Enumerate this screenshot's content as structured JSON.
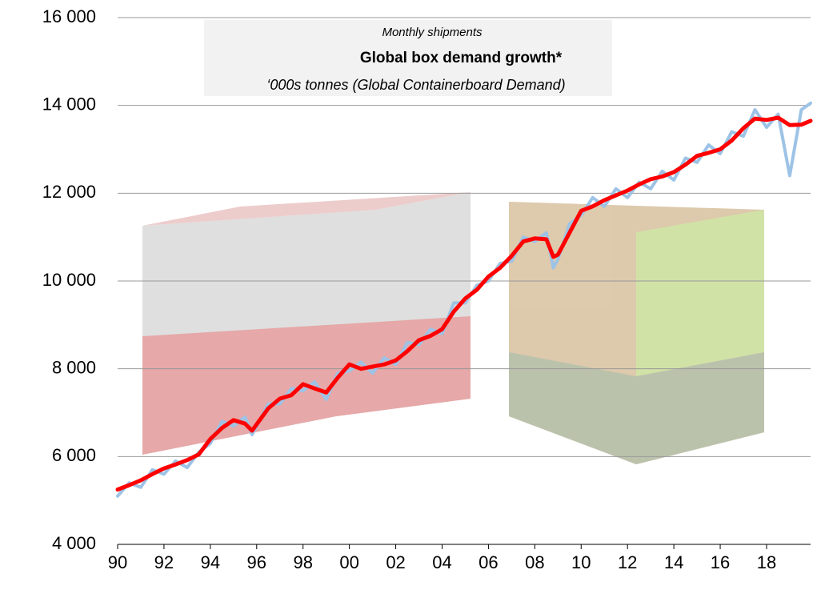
{
  "chart_data": {
    "type": "line",
    "title": "Global box demand growth*",
    "subtitle": "Monthly shipments",
    "annotation": "‘000s tonnes (Global Containerboard Demand)",
    "x": [
      1990,
      1990.5,
      1991,
      1991.5,
      1992,
      1992.5,
      1993,
      1993.5,
      1994,
      1994.5,
      1995,
      1995.5,
      1995.8,
      1996.5,
      1997,
      1997.5,
      1998,
      1998.5,
      1999,
      1999.5,
      2000,
      2000.5,
      2001,
      2001.5,
      2002,
      2002.5,
      2003,
      2003.5,
      2004,
      2004.5,
      2005,
      2005.5,
      2006,
      2006.5,
      2007,
      2007.5,
      2008,
      2008.5,
      2008.8,
      2009,
      2009.5,
      2010,
      2010.5,
      2011,
      2011.5,
      2012,
      2012.5,
      2013,
      2013.5,
      2014,
      2014.5,
      2015,
      2015.5,
      2016,
      2016.5,
      2017,
      2017.5,
      2018,
      2018.5,
      2019,
      2019.5,
      2019.9
    ],
    "series": [
      {
        "color": "#9dc3e6",
        "values": [
          5100,
          5400,
          5300,
          5700,
          5600,
          5900,
          5750,
          6100,
          6300,
          6800,
          6700,
          6900,
          6500,
          7200,
          7200,
          7550,
          7500,
          7700,
          7300,
          7900,
          7950,
          8150,
          7900,
          8250,
          8100,
          8600,
          8550,
          8900,
          8800,
          9500,
          9500,
          9900,
          10000,
          10400,
          10450,
          11000,
          10900,
          11100,
          10300,
          10500,
          11300,
          11500,
          11900,
          11700,
          12100,
          11900,
          12250,
          12100,
          12500,
          12300,
          12800,
          12700,
          13100,
          12900,
          13400,
          13300,
          13900,
          13500,
          13800,
          12400,
          13900,
          14050
        ]
      },
      {
        "color": "#ff0000",
        "values": [
          5250,
          5350,
          5460,
          5600,
          5730,
          5820,
          5920,
          6050,
          6400,
          6650,
          6830,
          6750,
          6590,
          7100,
          7320,
          7400,
          7650,
          7550,
          7460,
          7800,
          8100,
          8000,
          8050,
          8100,
          8190,
          8400,
          8650,
          8750,
          8900,
          9300,
          9600,
          9800,
          10100,
          10300,
          10570,
          10900,
          10970,
          10950,
          10550,
          10600,
          11100,
          11600,
          11700,
          11840,
          11950,
          12060,
          12200,
          12320,
          12380,
          12480,
          12650,
          12850,
          12920,
          13000,
          13200,
          13480,
          13700,
          13670,
          13720,
          13550,
          13560,
          13650
        ]
      }
    ],
    "xlim": [
      1990,
      2019.9
    ],
    "xticks": [
      {
        "value": 1990,
        "label": "90"
      },
      {
        "value": 1992,
        "label": "92"
      },
      {
        "value": 1994,
        "label": "94"
      },
      {
        "value": 1996,
        "label": "96"
      },
      {
        "value": 1998,
        "label": "98"
      },
      {
        "value": 2000,
        "label": "00"
      },
      {
        "value": 2002,
        "label": "02"
      },
      {
        "value": 2004,
        "label": "04"
      },
      {
        "value": 2006,
        "label": "06"
      },
      {
        "value": 2008,
        "label": "08"
      },
      {
        "value": 2010,
        "label": "10"
      },
      {
        "value": 2012,
        "label": "12"
      },
      {
        "value": 2014,
        "label": "14"
      },
      {
        "value": 2016,
        "label": "16"
      },
      {
        "value": 2018,
        "label": "18"
      }
    ],
    "ylim": [
      4000,
      16000
    ],
    "yticks": [
      {
        "value": 4000,
        "label": "4 000"
      },
      {
        "value": 6000,
        "label": "6 000"
      },
      {
        "value": 8000,
        "label": "8 000"
      },
      {
        "value": 10000,
        "label": "10 000"
      },
      {
        "value": 12000,
        "label": "12 000"
      },
      {
        "value": 14000,
        "label": "14 000"
      },
      {
        "value": 16000,
        "label": "16 000"
      }
    ],
    "grid": true
  }
}
